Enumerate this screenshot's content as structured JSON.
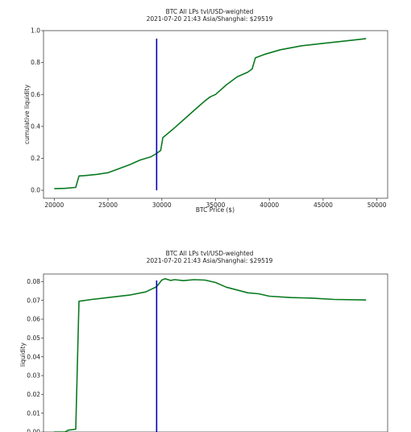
{
  "chart_data": [
    {
      "type": "line",
      "title": "BTC All LPs tvl/USD-weighted",
      "subtitle": "2021-07-20 21:43 Asia/Shanghai: $29519",
      "xlabel": "BTC Price ($)",
      "ylabel": "cumulative liquidity",
      "xlim": [
        19000,
        51000
      ],
      "ylim": [
        -0.05,
        1.0
      ],
      "xticks": [
        "20000",
        "25000",
        "30000",
        "35000",
        "40000",
        "45000",
        "50000"
      ],
      "yticks": [
        "0.0",
        "0.2",
        "0.4",
        "0.6",
        "0.8",
        "1.0"
      ],
      "grid": false,
      "line_color": "#0a7a20",
      "marker_color": "#0000b4",
      "marker_x": 29519,
      "marker_ylim": [
        0.0,
        0.95
      ],
      "series": [
        {
          "x": [
            20000,
            21000,
            22000,
            22300,
            22800,
            24000,
            25000,
            26000,
            27000,
            28000,
            29000,
            29500,
            29900,
            30100,
            31000,
            32000,
            33000,
            34000,
            34500,
            35000,
            36000,
            37000,
            38000,
            38400,
            38700,
            39500,
            41000,
            43000,
            45000,
            47000,
            49000
          ],
          "y": [
            0.01,
            0.012,
            0.018,
            0.09,
            0.092,
            0.1,
            0.11,
            0.135,
            0.16,
            0.19,
            0.21,
            0.23,
            0.25,
            0.33,
            0.38,
            0.44,
            0.5,
            0.56,
            0.585,
            0.6,
            0.66,
            0.71,
            0.74,
            0.76,
            0.83,
            0.85,
            0.88,
            0.905,
            0.92,
            0.935,
            0.95
          ]
        }
      ]
    },
    {
      "type": "line",
      "title": "BTC All LPs tvl/USD-weighted",
      "subtitle": "2021-07-20 21:43 Asia/Shanghai: $29519",
      "xlabel": "",
      "ylabel": "liquidity",
      "xlim": [
        19000,
        51000
      ],
      "ylim": [
        0.0,
        0.084
      ],
      "yticks": [
        "0.00",
        "0.01",
        "0.02",
        "0.03",
        "0.04",
        "0.05",
        "0.06",
        "0.07",
        "0.08"
      ],
      "grid": false,
      "line_color": "#0a7a20",
      "marker_color": "#0000b4",
      "marker_x": 29519,
      "series": [
        {
          "x": [
            20000,
            21000,
            21300,
            22000,
            22300,
            23500,
            25000,
            27000,
            28500,
            29500,
            30000,
            30300,
            30800,
            31200,
            32000,
            33000,
            34000,
            35000,
            36000,
            37000,
            38000,
            39000,
            40000,
            42000,
            44000,
            46000,
            49000
          ],
          "y": [
            0.0,
            0.0,
            0.001,
            0.0015,
            0.0695,
            0.0705,
            0.0715,
            0.0728,
            0.0745,
            0.0772,
            0.0808,
            0.0815,
            0.0806,
            0.081,
            0.0805,
            0.081,
            0.0808,
            0.0795,
            0.077,
            0.0755,
            0.074,
            0.0735,
            0.0722,
            0.0715,
            0.0712,
            0.0705,
            0.0702
          ]
        }
      ]
    }
  ]
}
